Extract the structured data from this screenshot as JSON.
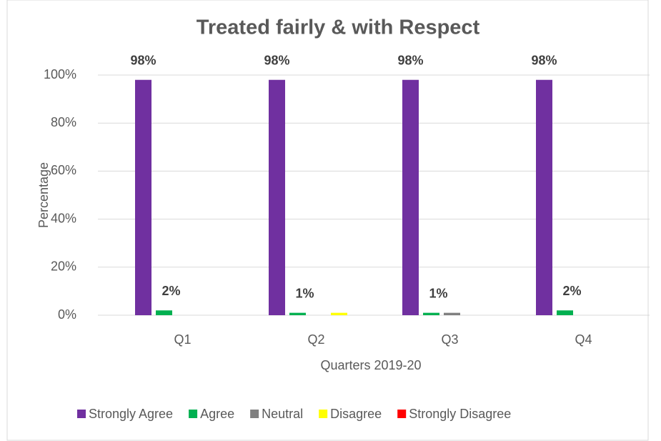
{
  "chart_data": {
    "type": "bar",
    "title": "Treated fairly & with Respect",
    "xlabel": "Quarters 2019-20",
    "ylabel": "Percentage",
    "categories": [
      "Q1",
      "Q2",
      "Q3",
      "Q4"
    ],
    "series": [
      {
        "name": "Strongly Agree",
        "color": "#7030a0",
        "values": [
          98,
          98,
          98,
          98
        ],
        "value_labels": [
          "98%",
          "98%",
          "98%",
          "98%"
        ]
      },
      {
        "name": "Agree",
        "color": "#00b050",
        "values": [
          2,
          1,
          1,
          2
        ],
        "value_labels": [
          "2%",
          "1%",
          "1%",
          "2%"
        ]
      },
      {
        "name": "Neutral",
        "color": "#808080",
        "values": [
          0,
          0,
          1,
          0
        ]
      },
      {
        "name": "Disagree",
        "color": "#ffff00",
        "values": [
          0,
          1,
          0,
          0
        ]
      },
      {
        "name": "Strongly Disagree",
        "color": "#ff0000",
        "values": [
          0,
          0,
          0,
          0
        ]
      }
    ],
    "ylim": [
      0,
      100
    ],
    "yticks": [
      {
        "value": 0,
        "label": "0%"
      },
      {
        "value": 20,
        "label": "20%"
      },
      {
        "value": 40,
        "label": "40%"
      },
      {
        "value": 60,
        "label": "60%"
      },
      {
        "value": 80,
        "label": "80%"
      },
      {
        "value": 100,
        "label": "100%"
      }
    ],
    "grid": true,
    "legend": "bottom"
  }
}
